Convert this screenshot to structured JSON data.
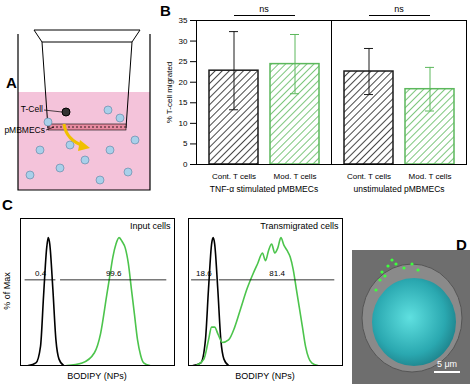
{
  "chart_data": [
    {
      "type": "diagram",
      "panel": "A",
      "labels": [
        "T-Cell",
        "pMBMECs"
      ]
    },
    {
      "type": "bar",
      "panel": "B",
      "y_label": "% T-cell migrated",
      "categories": [
        "TNF-α stimulated pMBMECs",
        "unstimulated pMBMECs"
      ],
      "series": [
        {
          "name": "Cont. T cells",
          "color": "#1a1a1a",
          "values": [
            22.8,
            22.6
          ],
          "errors": [
            9.5,
            5.6
          ]
        },
        {
          "name": "Mod. T cells",
          "color": "#5cb85c",
          "values": [
            24.4,
            18.3
          ],
          "errors": [
            7.2,
            5.3
          ]
        }
      ],
      "ylim": [
        0,
        35
      ],
      "yticks": [
        0,
        5,
        10,
        15,
        20,
        25,
        30,
        35
      ],
      "significance": [
        {
          "group": "TNF-α stimulated pMBMECs",
          "label": "ns",
          "between": [
            "Cont. T cells",
            "Mod. T cells"
          ]
        },
        {
          "group": "unstimulated pMBMECs",
          "label": "ns",
          "between": [
            "Cont. T cells",
            "Mod. T cells"
          ]
        }
      ]
    },
    {
      "type": "line",
      "panel": "C",
      "title": "Input cells",
      "x_label": "BODIPY (NPs)",
      "y_label": "% of Max",
      "xlim": [
        0,
        100
      ],
      "ylim": [
        0,
        115
      ],
      "tick_labels": false,
      "series": [
        {
          "color": "#000000",
          "x": [
            5,
            10,
            13,
            15,
            17,
            18,
            19,
            21,
            23,
            25,
            28
          ],
          "values": [
            0,
            2,
            15,
            55,
            92,
            100,
            95,
            60,
            20,
            5,
            0
          ]
        },
        {
          "color": "#4cc44c",
          "x": [
            30,
            40,
            48,
            52,
            56,
            58,
            60,
            62,
            64,
            66,
            68,
            70,
            72,
            74,
            76,
            78,
            80,
            84
          ],
          "values": [
            0,
            2,
            10,
            25,
            55,
            70,
            85,
            95,
            100,
            97,
            92,
            80,
            60,
            40,
            20,
            8,
            2,
            0
          ]
        }
      ],
      "gates": [
        {
          "value": 0.4,
          "x": [
            3,
            23
          ],
          "y": 67
        },
        {
          "value": 99.6,
          "x": [
            26,
            95
          ],
          "y": 67
        }
      ]
    },
    {
      "type": "line",
      "title": "Transmigrated cells",
      "x_label": "BODIPY (NPs)",
      "xlim": [
        0,
        100
      ],
      "ylim": [
        0,
        115
      ],
      "tick_labels": false,
      "series": [
        {
          "color": "#000000",
          "x": [
            3,
            8,
            11,
            13,
            15,
            16,
            17,
            19,
            21,
            23,
            26
          ],
          "values": [
            0,
            2,
            20,
            60,
            95,
            100,
            95,
            60,
            20,
            5,
            0
          ]
        },
        {
          "color": "#4cc44c",
          "x": [
            5,
            10,
            13,
            15,
            17,
            19,
            22,
            26,
            30,
            34,
            38,
            42,
            45,
            48,
            50,
            52,
            54,
            56,
            58,
            60,
            62,
            64,
            66,
            68,
            70,
            72,
            74,
            76,
            78,
            80,
            84
          ],
          "values": [
            0,
            5,
            20,
            30,
            30,
            25,
            18,
            20,
            30,
            45,
            60,
            72,
            80,
            88,
            82,
            90,
            95,
            88,
            92,
            100,
            94,
            90,
            85,
            75,
            60,
            45,
            30,
            15,
            6,
            2,
            0
          ]
        }
      ],
      "gates": [
        {
          "value": 18.6,
          "x": [
            2,
            18
          ],
          "y": 67
        },
        {
          "value": 81.4,
          "x": [
            20,
            95
          ],
          "y": 67
        }
      ]
    },
    {
      "type": "image",
      "panel": "D",
      "scale_bar": "5 μm"
    }
  ]
}
